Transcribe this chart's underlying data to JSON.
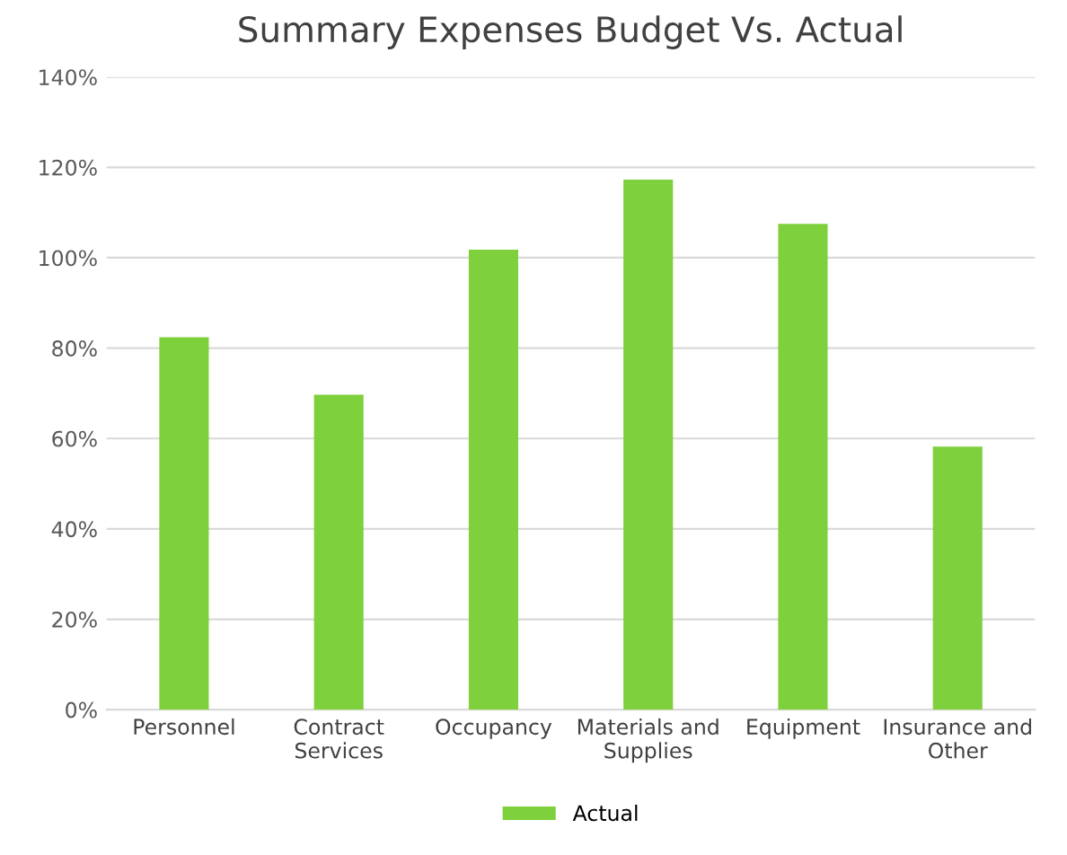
{
  "chart_data": {
    "type": "bar",
    "title": "Summary Expenses Budget Vs. Actual",
    "categories": [
      "Personnel",
      "Contract\nServices",
      "Occupancy",
      "Materials and\nSupplies",
      "Equipment",
      "Insurance and\nOther"
    ],
    "series": [
      {
        "name": "Actual",
        "color": "#7ed03c",
        "values": [
          82.4,
          69.7,
          101.8,
          117.3,
          107.5,
          58.2
        ]
      }
    ],
    "ylim": [
      0,
      140
    ],
    "yticks": [
      {
        "value": 0,
        "label": "0%"
      },
      {
        "value": 20,
        "label": "20%"
      },
      {
        "value": 40,
        "label": "40%"
      },
      {
        "value": 60,
        "label": "60%"
      },
      {
        "value": 80,
        "label": "80%"
      },
      {
        "value": 100,
        "label": "100%"
      },
      {
        "value": 120,
        "label": "120%"
      },
      {
        "value": 140,
        "label": "140%"
      }
    ],
    "grid": "y",
    "legend": "bottom"
  }
}
